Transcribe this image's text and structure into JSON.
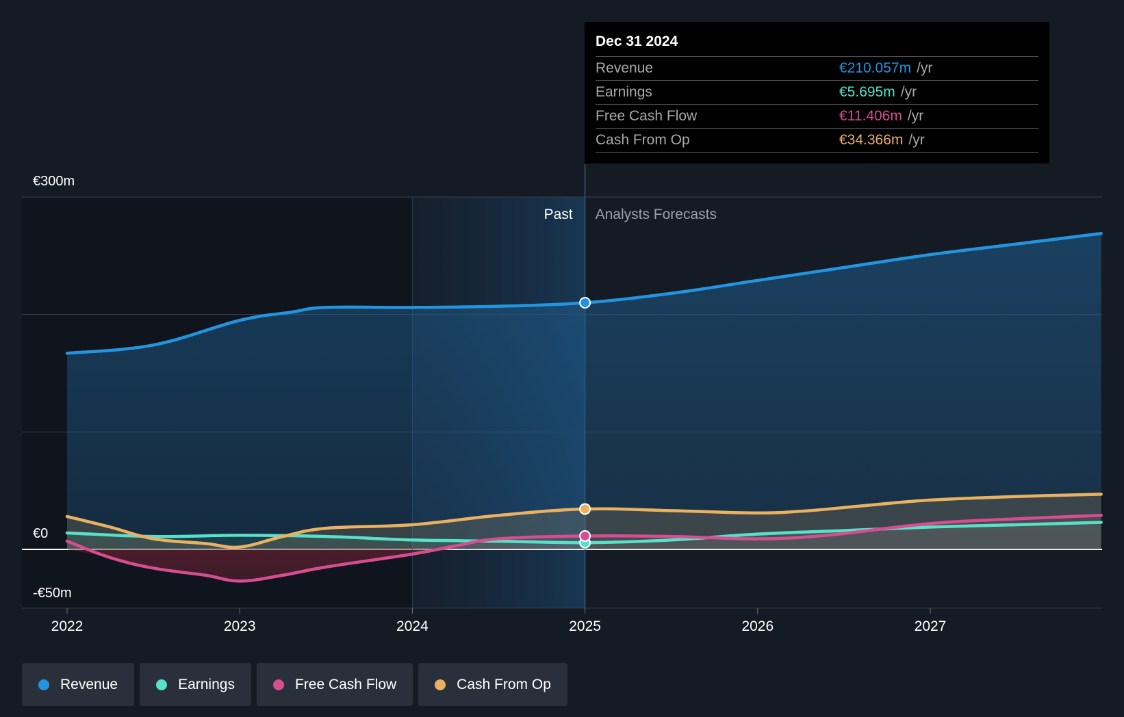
{
  "chart_data": {
    "type": "area",
    "title": "",
    "xlabel": "",
    "ylabel": "",
    "x_range": [
      2021.75,
      2027.99
    ],
    "ylim": [
      -50,
      300
    ],
    "y_tick_labels": [
      {
        "value": 300,
        "label": "€300m"
      },
      {
        "value": 0,
        "label": "€0"
      },
      {
        "value": -50,
        "label": "-€50m"
      }
    ],
    "gridlines": [
      300,
      200,
      100,
      0,
      -50
    ],
    "x_ticks": [
      {
        "value": 2022,
        "label": "2022"
      },
      {
        "value": 2023,
        "label": "2023"
      },
      {
        "value": 2024,
        "label": "2024"
      },
      {
        "value": 2025,
        "label": "2025"
      },
      {
        "value": 2026,
        "label": "2026"
      },
      {
        "value": 2027,
        "label": "2027"
      }
    ],
    "past_forecast_divider": 2025,
    "highlight_start": 2024,
    "past_label": "Past",
    "forecast_label": "Analysts Forecasts",
    "series": [
      {
        "name": "Revenue",
        "color": "#2394df",
        "fill": true,
        "points": [
          [
            2022,
            167
          ],
          [
            2022.5,
            174
          ],
          [
            2023,
            195
          ],
          [
            2023.3,
            202
          ],
          [
            2023.5,
            206
          ],
          [
            2024,
            206
          ],
          [
            2024.5,
            207
          ],
          [
            2025,
            210
          ],
          [
            2025.5,
            218
          ],
          [
            2026,
            229
          ],
          [
            2026.5,
            240
          ],
          [
            2027,
            251
          ],
          [
            2027.5,
            260
          ],
          [
            2027.99,
            269
          ]
        ]
      },
      {
        "name": "Earnings",
        "color": "#58e1c9",
        "fill": true,
        "points": [
          [
            2022,
            14
          ],
          [
            2022.5,
            11
          ],
          [
            2023,
            12
          ],
          [
            2023.5,
            11
          ],
          [
            2024,
            8
          ],
          [
            2024.5,
            7
          ],
          [
            2025,
            5.7
          ],
          [
            2025.5,
            8
          ],
          [
            2026,
            13
          ],
          [
            2026.5,
            16
          ],
          [
            2027,
            19
          ],
          [
            2027.5,
            21
          ],
          [
            2027.99,
            23
          ]
        ]
      },
      {
        "name": "Free Cash Flow",
        "color": "#d64e91",
        "fill": true,
        "points": [
          [
            2022,
            7
          ],
          [
            2022.25,
            -7
          ],
          [
            2022.5,
            -16
          ],
          [
            2022.8,
            -22
          ],
          [
            2023,
            -27
          ],
          [
            2023.25,
            -22
          ],
          [
            2023.5,
            -15
          ],
          [
            2024,
            -4
          ],
          [
            2024.25,
            3
          ],
          [
            2024.5,
            9
          ],
          [
            2025,
            11.4
          ],
          [
            2025.5,
            11
          ],
          [
            2026,
            9
          ],
          [
            2026.4,
            12
          ],
          [
            2027,
            22
          ],
          [
            2027.5,
            26
          ],
          [
            2027.99,
            29
          ]
        ]
      },
      {
        "name": "Cash From Op",
        "color": "#eab260",
        "fill": true,
        "points": [
          [
            2022,
            28
          ],
          [
            2022.25,
            19
          ],
          [
            2022.5,
            9
          ],
          [
            2022.8,
            5
          ],
          [
            2023,
            2
          ],
          [
            2023.25,
            11
          ],
          [
            2023.5,
            18
          ],
          [
            2024,
            21
          ],
          [
            2024.5,
            29
          ],
          [
            2025,
            34.4
          ],
          [
            2025.5,
            33
          ],
          [
            2026,
            31
          ],
          [
            2026.3,
            33
          ],
          [
            2026.6,
            37
          ],
          [
            2027,
            42
          ],
          [
            2027.5,
            45
          ],
          [
            2027.99,
            47
          ]
        ]
      }
    ]
  },
  "tooltip": {
    "date": "Dec 31 2024",
    "unit": "/yr",
    "rows": [
      {
        "name": "Revenue",
        "value": "€210.057m",
        "color": "#2394df"
      },
      {
        "name": "Earnings",
        "value": "€5.695m",
        "color": "#58e1c9"
      },
      {
        "name": "Free Cash Flow",
        "value": "€11.406m",
        "color": "#d64e91"
      },
      {
        "name": "Cash From Op",
        "value": "€34.366m",
        "color": "#eab260"
      }
    ]
  },
  "legend": {
    "items": [
      {
        "label": "Revenue",
        "color": "#2394df"
      },
      {
        "label": "Earnings",
        "color": "#58e1c9"
      },
      {
        "label": "Free Cash Flow",
        "color": "#d64e91"
      },
      {
        "label": "Cash From Op",
        "color": "#eab260"
      }
    ]
  }
}
